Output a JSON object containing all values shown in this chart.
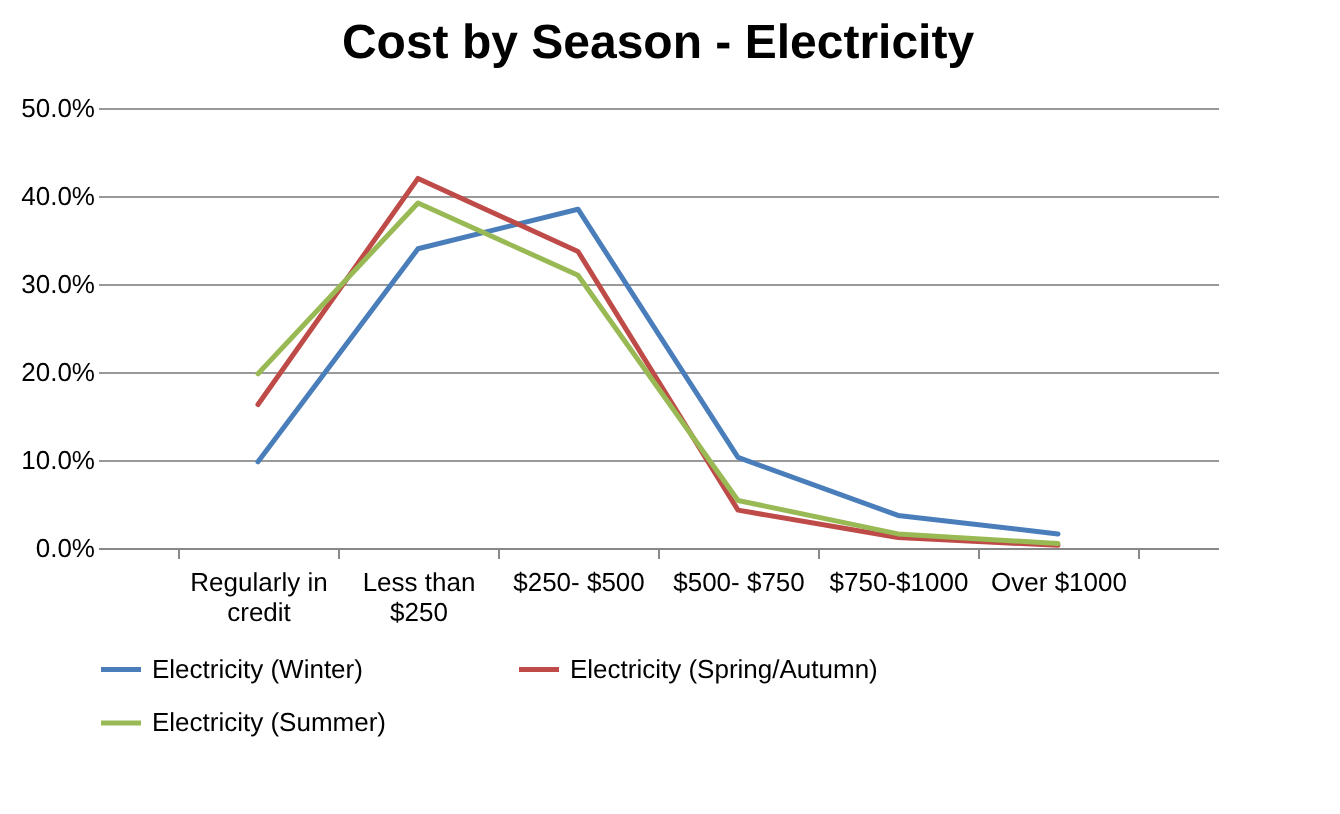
{
  "chart_data": {
    "type": "line",
    "title": "Cost by Season - Electricity",
    "categories": [
      "Regularly in credit",
      "Less than $250",
      "$250- $500",
      "$500- $750",
      "$750-$1000",
      "Over $1000"
    ],
    "series": [
      {
        "name": "Electricity (Winter)",
        "color": "#4a7ebb",
        "values": [
          9.8,
          34.0,
          38.5,
          10.3,
          3.7,
          1.6
        ]
      },
      {
        "name": "Electricity (Spring/Autumn)",
        "color": "#be4b48",
        "values": [
          16.3,
          42.0,
          33.7,
          4.3,
          1.2,
          0.3
        ]
      },
      {
        "name": "Electricity (Summer)",
        "color": "#98b954",
        "values": [
          19.8,
          39.2,
          31.0,
          5.4,
          1.6,
          0.5
        ]
      }
    ],
    "ylim": [
      0,
      50
    ],
    "yticks": [
      {
        "value": 0,
        "label": "0.0%"
      },
      {
        "value": 10,
        "label": "10.0%"
      },
      {
        "value": 20,
        "label": "20.0%"
      },
      {
        "value": 30,
        "label": "30.0%"
      },
      {
        "value": 40,
        "label": "40.0%"
      },
      {
        "value": 50,
        "label": "50.0%"
      }
    ],
    "grid": "y",
    "legend": "bottom",
    "marker": "none",
    "line_style": "solid"
  }
}
